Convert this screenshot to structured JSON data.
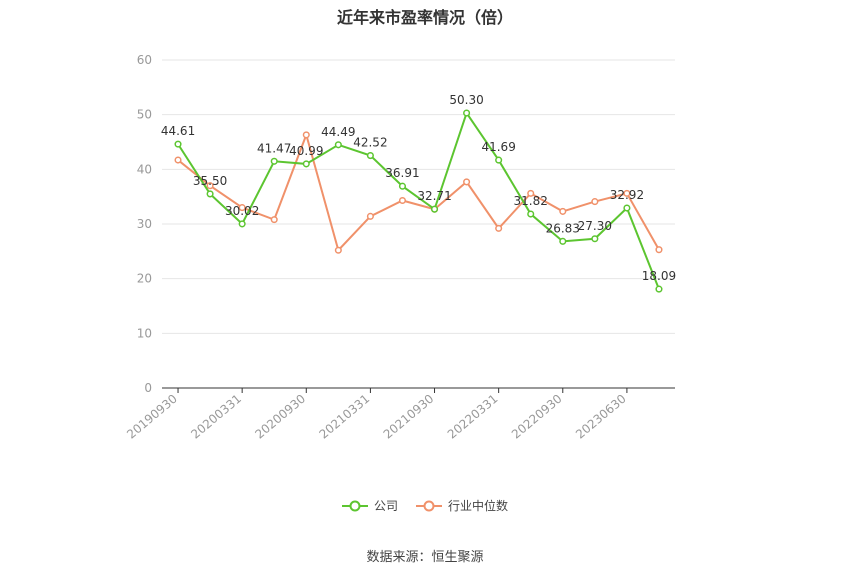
{
  "chart_data": {
    "type": "line",
    "title": "近年来市盈率情况（倍）",
    "xlabel": "",
    "ylabel": "",
    "ylim": [
      0,
      60
    ],
    "yticks": [
      0,
      10,
      20,
      30,
      40,
      50,
      60
    ],
    "x_tick_labels": [
      "20190930",
      "20200331",
      "20200930",
      "20210331",
      "20210930",
      "20220331",
      "20220930",
      "20230630"
    ],
    "grid": true,
    "legend_position": "bottom",
    "series": [
      {
        "name": "公司",
        "color": "#5cc530",
        "values": [
          44.61,
          35.5,
          30.02,
          41.47,
          40.99,
          44.49,
          42.52,
          36.91,
          32.71,
          50.3,
          41.69,
          31.82,
          26.83,
          27.3,
          32.92,
          18.09
        ],
        "labels": [
          "44.61",
          "35.50",
          "30.02",
          "41.47",
          "40.99",
          "44.49",
          "42.52",
          "36.91",
          "32.71",
          "50.30",
          "41.69",
          "31.82",
          "26.83",
          "27.30",
          "32.92",
          "18.09"
        ]
      },
      {
        "name": "行业中位数",
        "color": "#f0916a",
        "values": [
          41.7,
          37.0,
          33.0,
          30.8,
          46.3,
          25.2,
          31.4,
          34.3,
          32.7,
          37.7,
          29.2,
          35.6,
          32.3,
          34.1,
          35.6,
          25.3
        ]
      }
    ]
  },
  "source": "数据来源：恒生聚源"
}
